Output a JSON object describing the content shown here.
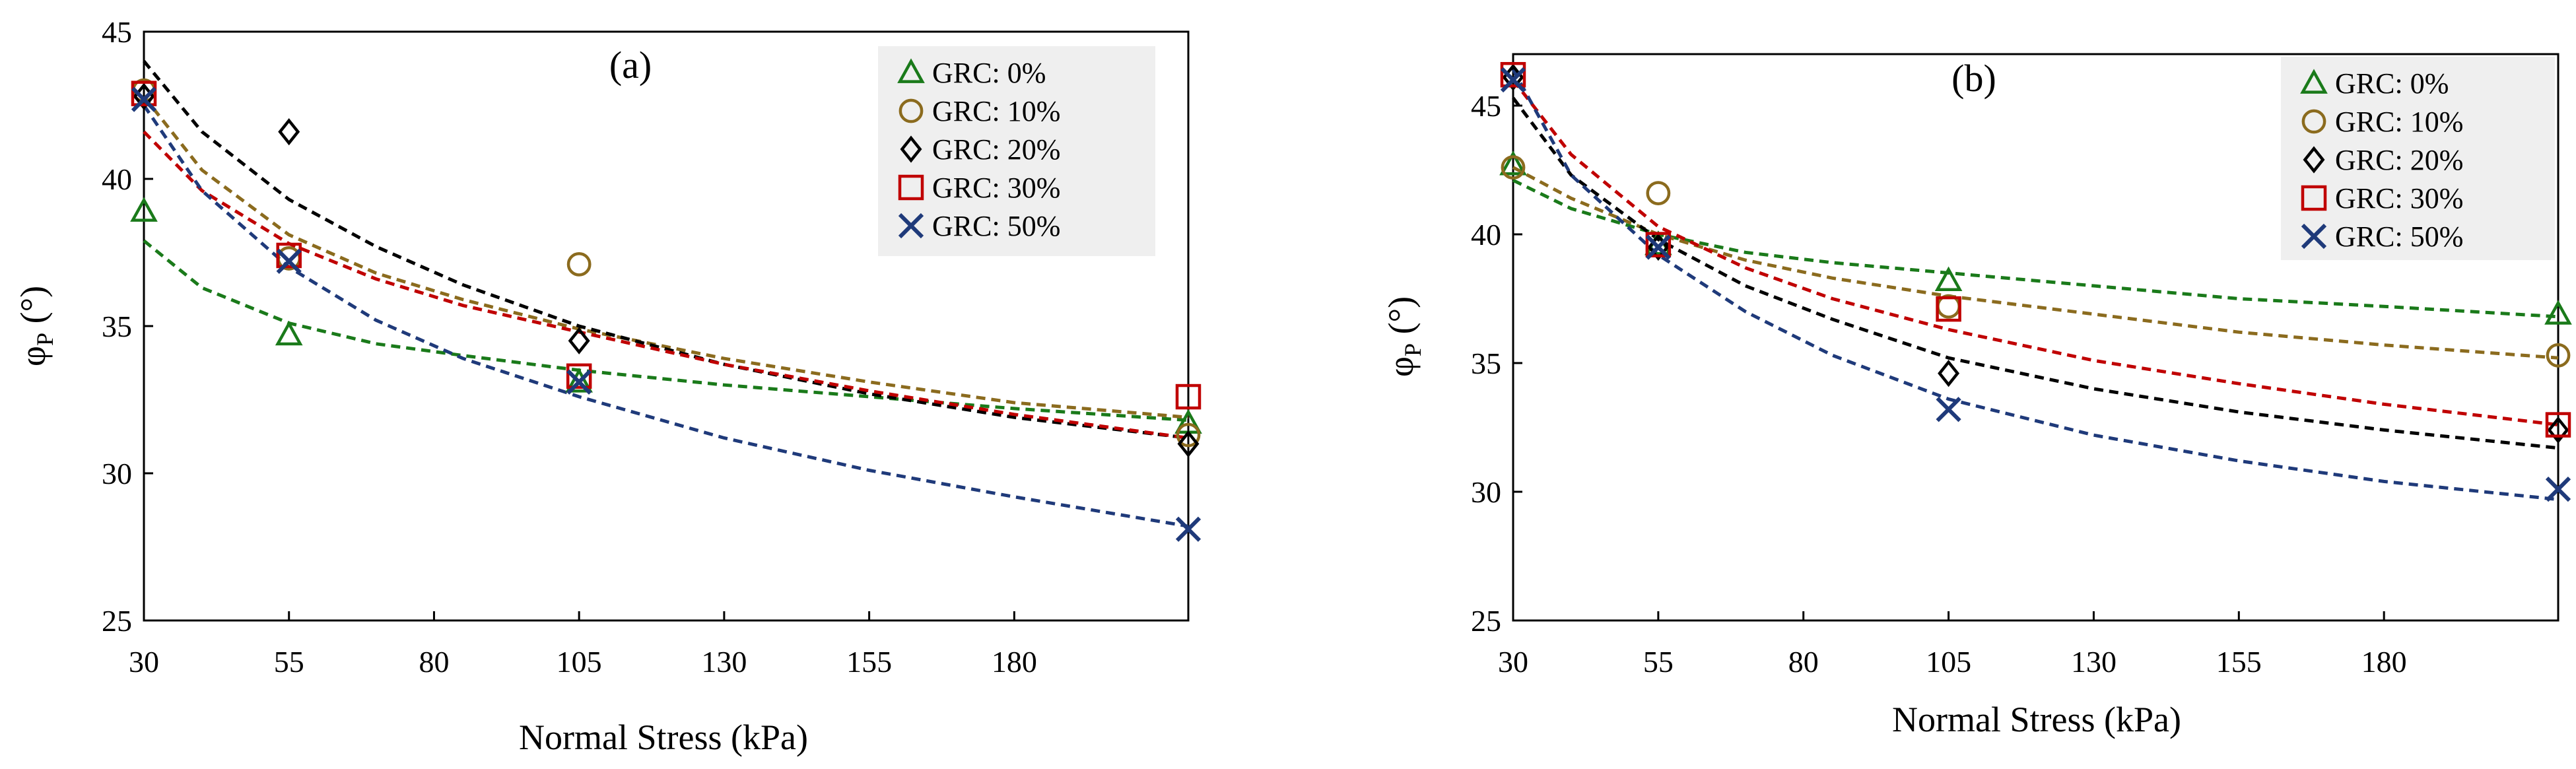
{
  "chart_data": [
    {
      "type": "scatter",
      "panel_label": "(a)",
      "xlabel": "Normal Stress (kPa)",
      "ylabel_main": "φ",
      "ylabel_sub": "P",
      "ylabel_unit": "(°)",
      "xlim": [
        30,
        210
      ],
      "ylim": [
        25,
        45
      ],
      "xticks": [
        30,
        55,
        80,
        105,
        130,
        155,
        180
      ],
      "yticks": [
        25,
        30,
        35,
        40,
        45
      ],
      "legend_position": "top-right",
      "series": [
        {
          "name": "GRC: 0%",
          "marker": "triangle",
          "color": "#1a7a1a",
          "x": [
            30,
            55,
            105,
            210
          ],
          "y": [
            38.9,
            34.7,
            33.1,
            31.7
          ],
          "trend_x": [
            30,
            40,
            55,
            70,
            85,
            105,
            130,
            155,
            180,
            210
          ],
          "trend_y": [
            37.9,
            36.3,
            35.1,
            34.4,
            34.0,
            33.5,
            33.0,
            32.6,
            32.2,
            31.8
          ]
        },
        {
          "name": "GRC: 10%",
          "marker": "circle",
          "color": "#8b6b1e",
          "x": [
            30,
            55,
            105,
            210
          ],
          "y": [
            43.0,
            37.3,
            37.1,
            31.3
          ],
          "trend_x": [
            30,
            40,
            55,
            70,
            85,
            105,
            130,
            155,
            180,
            210
          ],
          "trend_y": [
            42.8,
            40.3,
            38.1,
            36.8,
            35.9,
            34.9,
            33.9,
            33.1,
            32.4,
            31.9
          ]
        },
        {
          "name": "GRC: 20%",
          "marker": "diamond",
          "color": "#000000",
          "x": [
            30,
            55,
            105,
            210
          ],
          "y": [
            42.8,
            41.6,
            34.5,
            31.0
          ],
          "trend_x": [
            30,
            40,
            55,
            70,
            85,
            105,
            130,
            155,
            180,
            210
          ],
          "trend_y": [
            44.0,
            41.6,
            39.3,
            37.7,
            36.4,
            35.0,
            33.7,
            32.7,
            31.9,
            31.2
          ]
        },
        {
          "name": "GRC: 30%",
          "marker": "square",
          "color": "#c00000",
          "x": [
            30,
            55,
            105,
            210
          ],
          "y": [
            42.9,
            37.4,
            33.3,
            32.6
          ],
          "trend_x": [
            30,
            40,
            55,
            70,
            85,
            105,
            130,
            155,
            180,
            210
          ],
          "trend_y": [
            41.6,
            39.6,
            37.8,
            36.6,
            35.7,
            34.8,
            33.7,
            32.8,
            32.0,
            31.2
          ]
        },
        {
          "name": "GRC: 50%",
          "marker": "x",
          "color": "#1f3a7a",
          "x": [
            30,
            55,
            105,
            210
          ],
          "y": [
            42.7,
            37.2,
            33.1,
            28.1
          ],
          "trend_x": [
            30,
            40,
            55,
            70,
            85,
            105,
            130,
            155,
            180,
            210
          ],
          "trend_y": [
            42.5,
            39.6,
            37.0,
            35.2,
            33.9,
            32.6,
            31.2,
            30.1,
            29.2,
            28.2
          ]
        }
      ]
    },
    {
      "type": "scatter",
      "panel_label": "(b)",
      "xlabel": "Normal Stress (kPa)",
      "ylabel_main": "φ",
      "ylabel_sub": "P",
      "ylabel_unit": "(°)",
      "xlim": [
        30,
        210
      ],
      "ylim": [
        25,
        47
      ],
      "xticks": [
        30,
        55,
        80,
        105,
        130,
        155,
        180
      ],
      "yticks": [
        25,
        30,
        35,
        40,
        45
      ],
      "legend_position": "top-right",
      "series": [
        {
          "name": "GRC: 0%",
          "marker": "triangle",
          "color": "#1a7a1a",
          "x": [
            30,
            55,
            105,
            210
          ],
          "y": [
            42.7,
            39.6,
            38.2,
            36.9
          ],
          "trend_x": [
            30,
            40,
            55,
            70,
            85,
            105,
            130,
            155,
            180,
            210
          ],
          "trend_y": [
            42.1,
            41.0,
            40.0,
            39.3,
            38.9,
            38.5,
            38.0,
            37.5,
            37.2,
            36.8
          ]
        },
        {
          "name": "GRC: 10%",
          "marker": "circle",
          "color": "#8b6b1e",
          "x": [
            30,
            55,
            105,
            210
          ],
          "y": [
            42.6,
            41.6,
            37.2,
            35.3
          ],
          "trend_x": [
            30,
            40,
            55,
            70,
            85,
            105,
            130,
            155,
            180,
            210
          ],
          "trend_y": [
            42.6,
            41.4,
            40.0,
            39.0,
            38.3,
            37.6,
            36.9,
            36.2,
            35.7,
            35.2
          ]
        },
        {
          "name": "GRC: 20%",
          "marker": "diamond",
          "color": "#000000",
          "x": [
            30,
            55,
            105,
            210
          ],
          "y": [
            46.1,
            39.5,
            34.6,
            32.4
          ],
          "trend_x": [
            30,
            40,
            55,
            70,
            85,
            105,
            130,
            155,
            180,
            210
          ],
          "trend_y": [
            45.3,
            42.3,
            39.8,
            38.0,
            36.7,
            35.2,
            34.0,
            33.1,
            32.4,
            31.7
          ]
        },
        {
          "name": "GRC: 30%",
          "marker": "square",
          "color": "#c00000",
          "x": [
            30,
            55,
            105,
            210
          ],
          "y": [
            46.2,
            39.6,
            37.1,
            32.6
          ],
          "trend_x": [
            30,
            40,
            55,
            70,
            85,
            105,
            130,
            155,
            180,
            210
          ],
          "trend_y": [
            46.0,
            43.1,
            40.3,
            38.7,
            37.5,
            36.3,
            35.1,
            34.2,
            33.4,
            32.6
          ]
        },
        {
          "name": "GRC: 50%",
          "marker": "x",
          "color": "#1f3a7a",
          "x": [
            30,
            55,
            105,
            210
          ],
          "y": [
            46.0,
            39.5,
            33.2,
            30.1
          ],
          "trend_x": [
            30,
            40,
            55,
            70,
            85,
            105,
            130,
            155,
            180,
            210
          ],
          "trend_y": [
            46.4,
            42.3,
            39.2,
            37.0,
            35.3,
            33.6,
            32.2,
            31.2,
            30.4,
            29.7
          ]
        }
      ]
    }
  ]
}
